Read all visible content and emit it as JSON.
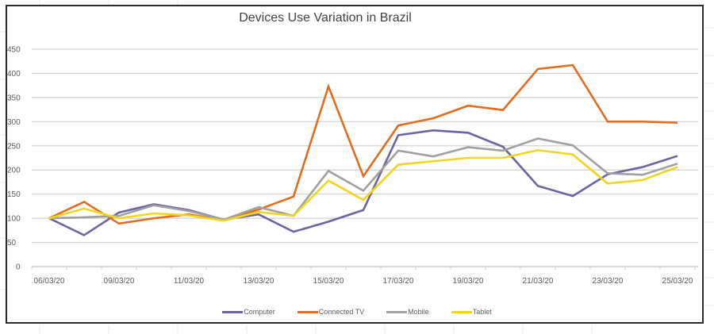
{
  "chart_data": {
    "type": "line",
    "title": "Devices Use Variation in Brazil",
    "xlabel": "",
    "ylabel": "",
    "ylim": [
      0,
      450
    ],
    "yticks": [
      0,
      50,
      100,
      150,
      200,
      250,
      300,
      350,
      400,
      450
    ],
    "grid": true,
    "legend_position": "bottom",
    "categories": [
      "06/03/20",
      "",
      "09/03/20",
      "",
      "11/03/20",
      "",
      "13/03/20",
      "",
      "15/03/20",
      "",
      "17/03/20",
      "",
      "19/03/20",
      "",
      "21/03/20",
      "",
      "23/03/20",
      "",
      "25/03/20"
    ],
    "tick_labels": [
      "06/03/20",
      "09/03/20",
      "11/03/20",
      "13/03/20",
      "15/03/20",
      "17/03/20",
      "19/03/20",
      "21/03/20",
      "23/03/20",
      "25/03/20"
    ],
    "series": [
      {
        "name": "Computer",
        "color": "#6A65A0",
        "values": [
          100,
          65,
          112,
          129,
          117,
          97,
          108,
          72,
          93,
          117,
          272,
          282,
          277,
          248,
          167,
          146,
          191,
          206,
          229
        ]
      },
      {
        "name": "Connected TV",
        "color": "#E46C1E",
        "values": [
          100,
          134,
          89,
          100,
          108,
          96,
          118,
          145,
          373,
          187,
          292,
          307,
          333,
          324,
          409,
          417,
          300,
          300,
          298
        ]
      },
      {
        "name": "Mobile",
        "color": "#A0A0A0",
        "values": [
          100,
          102,
          105,
          127,
          115,
          97,
          123,
          105,
          198,
          157,
          240,
          228,
          247,
          240,
          265,
          251,
          193,
          190,
          213
        ]
      },
      {
        "name": "Tablet",
        "color": "#F2D51C",
        "values": [
          100,
          120,
          100,
          110,
          106,
          95,
          113,
          105,
          178,
          138,
          211,
          218,
          225,
          225,
          241,
          232,
          172,
          179,
          206
        ]
      }
    ]
  }
}
